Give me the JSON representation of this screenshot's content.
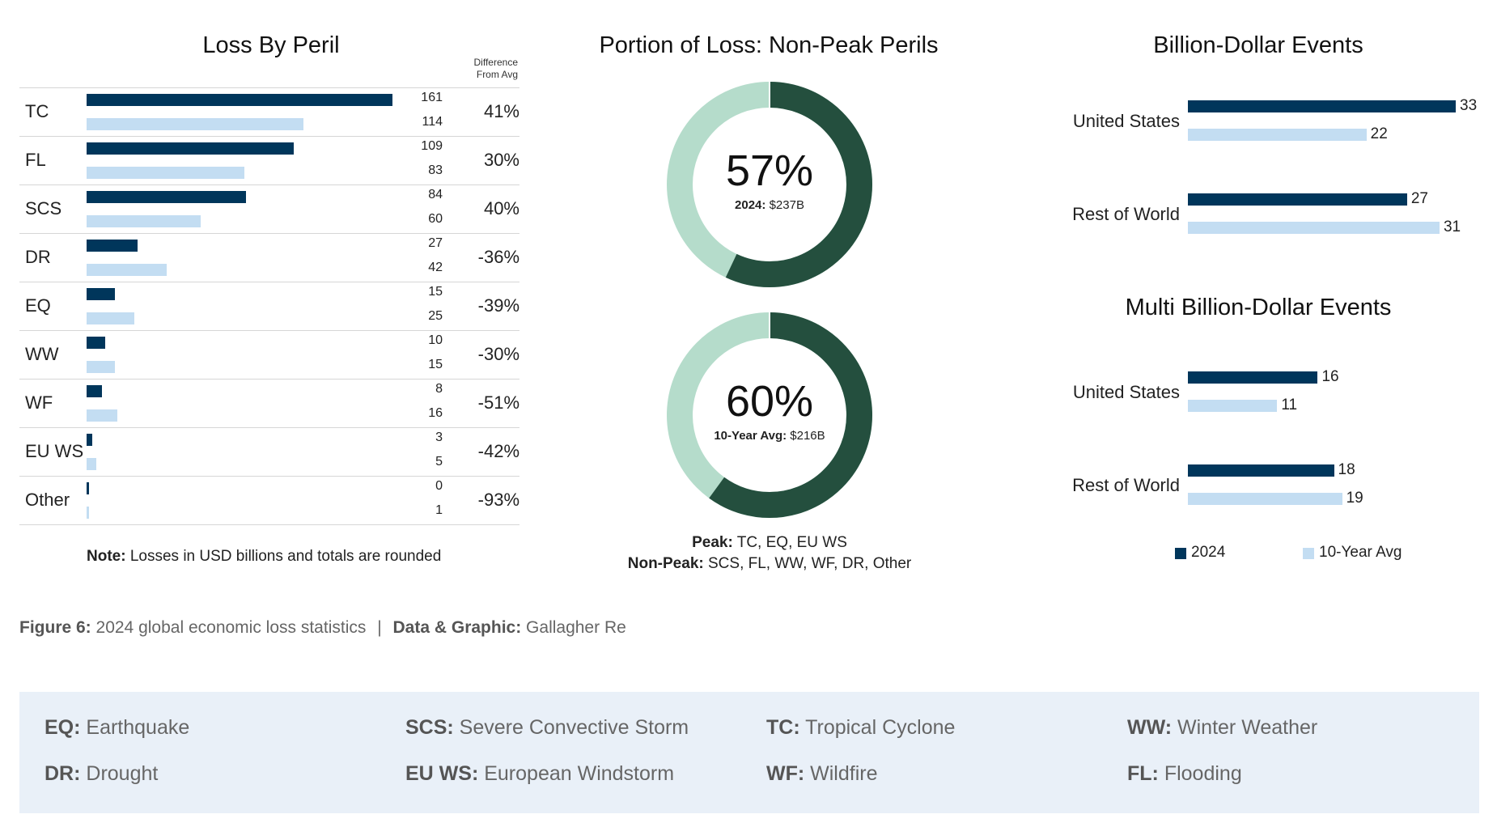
{
  "chart_data": [
    {
      "type": "bar",
      "title": "Loss By Peril",
      "diff_header": [
        "Difference",
        "From Avg"
      ],
      "categories": [
        "TC",
        "FL",
        "SCS",
        "DR",
        "EQ",
        "WW",
        "WF",
        "EU WS",
        "Other"
      ],
      "series": [
        {
          "name": "2024",
          "values": [
            161,
            109,
            84,
            27,
            15,
            10,
            8,
            3,
            0
          ]
        },
        {
          "name": "10-Year Avg",
          "values": [
            114,
            83,
            60,
            42,
            25,
            15,
            16,
            5,
            1
          ]
        }
      ],
      "difference": [
        "41%",
        "30%",
        "40%",
        "-36%",
        "-39%",
        "-30%",
        "-51%",
        "-42%",
        "-93%"
      ],
      "note_bold": "Note:",
      "note_text": " Losses in USD billions and totals are rounded",
      "colors": {
        "current": "#00365b",
        "average": "#c3ddf2"
      }
    },
    {
      "type": "pie",
      "title": "Portion of Loss: Non-Peak Perils",
      "donuts": [
        {
          "percent": 57,
          "center": "57%",
          "sub_bold": "2024:",
          "sub_text": " $237B"
        },
        {
          "percent": 60,
          "center": "60%",
          "sub_bold": "10-Year Avg:",
          "sub_text": "  $216B"
        }
      ],
      "peak_bold": "Peak:",
      "peak_text": " TC, EQ, EU WS",
      "nonpeak_bold": "Non-Peak:",
      "nonpeak_text": " SCS, FL, WW, WF, DR, Other",
      "colors": {
        "non_peak": "#244f3e",
        "peak": "#b5dccb"
      }
    },
    {
      "type": "bar",
      "title": "Billion-Dollar Events",
      "categories": [
        "United States",
        "Rest of World"
      ],
      "series": [
        {
          "name": "2024",
          "values": [
            33,
            27
          ]
        },
        {
          "name": "10-Year Avg",
          "values": [
            22,
            31
          ]
        }
      ]
    },
    {
      "type": "bar",
      "title": "Multi Billion-Dollar Events",
      "categories": [
        "United States",
        "Rest of World"
      ],
      "series": [
        {
          "name": "2024",
          "values": [
            16,
            18
          ]
        },
        {
          "name": "10-Year Avg",
          "values": [
            11,
            19
          ]
        }
      ],
      "legend": [
        "2024",
        "10-Year Avg"
      ]
    }
  ],
  "caption": {
    "fig_bold": "Figure 6:",
    "fig_text": " 2024 global economic loss statistics",
    "sep": "|",
    "src_bold": "Data & Graphic:",
    "src_text": "  Gallagher Re"
  },
  "abbreviations": [
    {
      "code": "EQ:",
      "name": " Earthquake"
    },
    {
      "code": "SCS:",
      "name": " Severe Convective Storm"
    },
    {
      "code": "TC:",
      "name": " Tropical Cyclone"
    },
    {
      "code": "WW:",
      "name": " Winter Weather"
    },
    {
      "code": "DR:",
      "name": " Drought"
    },
    {
      "code": "EU WS:",
      "name": " European Windstorm"
    },
    {
      "code": "WF:",
      "name": " Wildfire"
    },
    {
      "code": "FL:",
      "name": " Flooding"
    }
  ]
}
